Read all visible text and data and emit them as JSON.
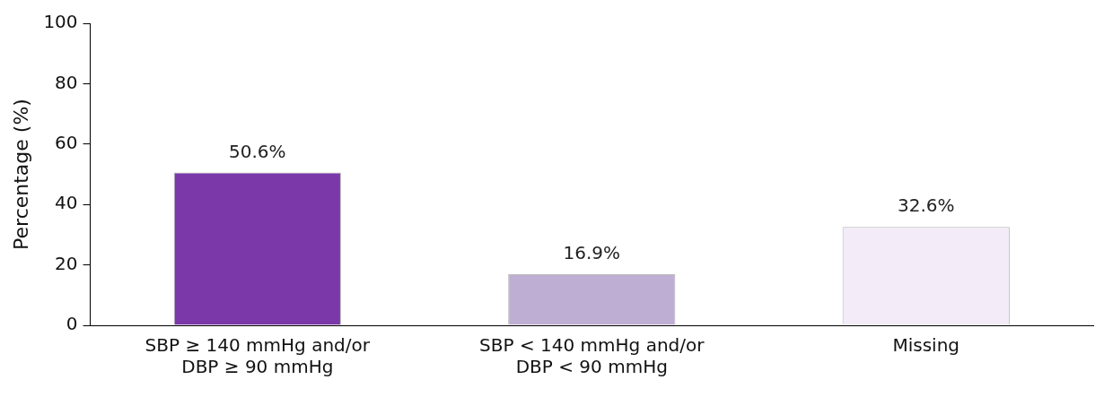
{
  "chart_data": {
    "type": "bar",
    "ylabel": "Percentage (%)",
    "categories": [
      "SBP ≥ 140 mmHg and/or\nDBP ≥ 90 mmHg",
      "SBP < 140 mmHg and/or\nDBP < 90 mmHg",
      "Missing"
    ],
    "values": [
      50.6,
      16.9,
      32.6
    ],
    "colors": [
      "#7a38a8",
      "#bfaed4",
      "#f3ecf8"
    ],
    "value_labels": [
      "50.6%",
      "16.9%",
      "32.6%"
    ],
    "ylim": [
      0,
      100
    ],
    "yticks": [
      0,
      20,
      40,
      60,
      80,
      100
    ],
    "grid": false,
    "legend": false
  }
}
